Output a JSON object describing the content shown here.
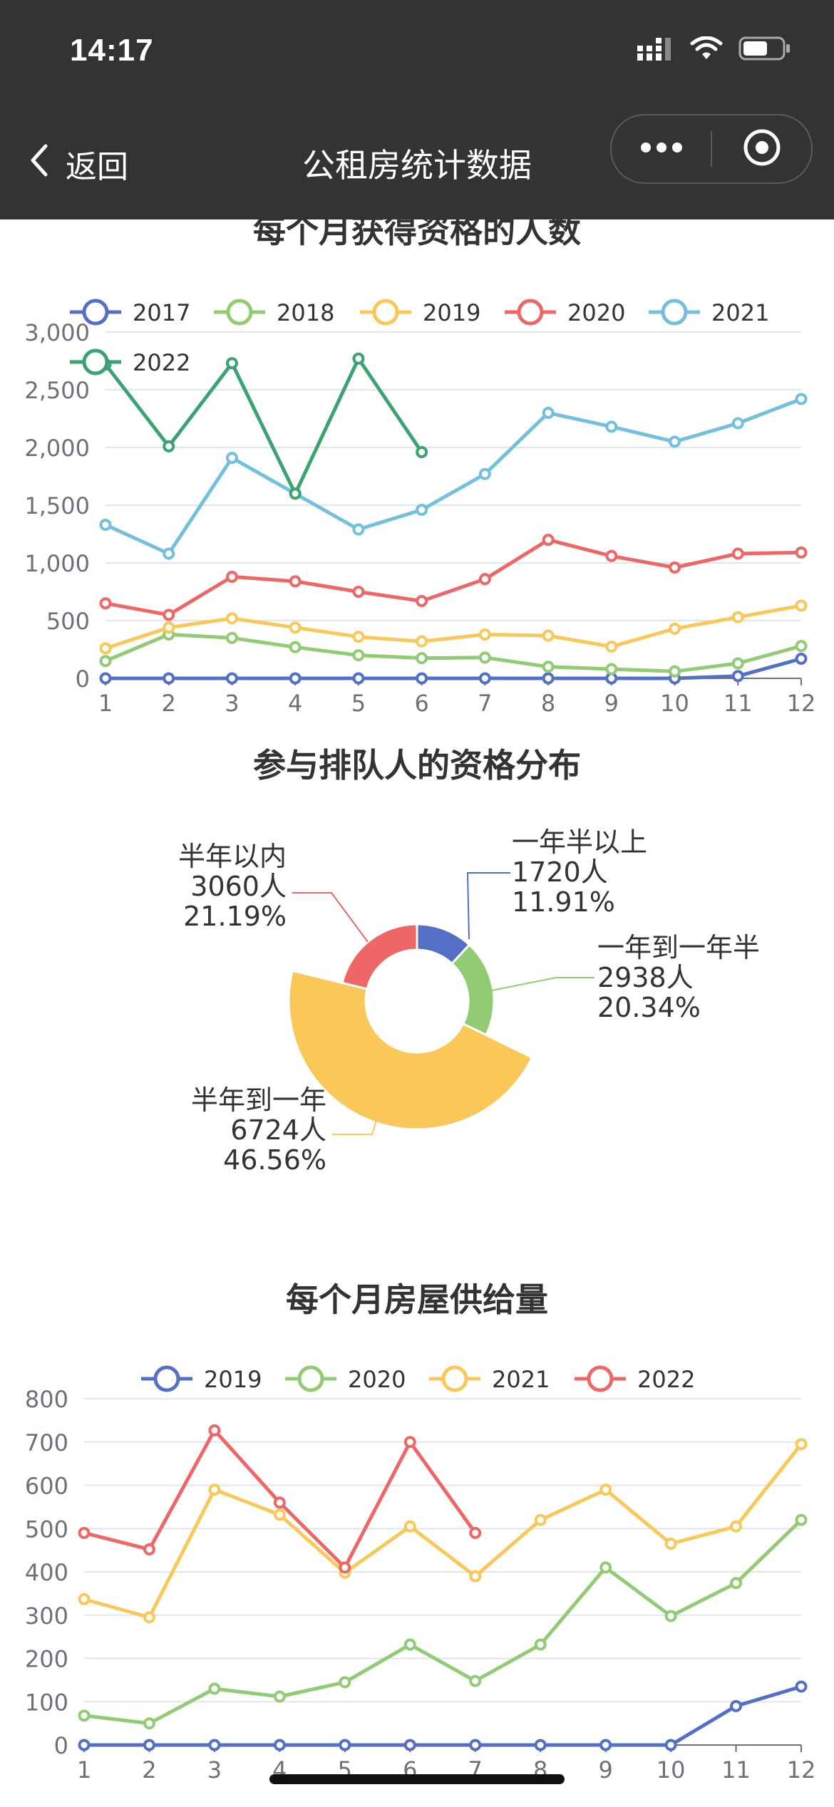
{
  "status_bar": {
    "time": "14:17"
  },
  "nav": {
    "back_label": "返回",
    "title": "公租房统计数据"
  },
  "sections": {
    "chart1_title": "每个月获得资格的人数",
    "chart2_title": "参与排队人的资格分布",
    "chart3_title": "每个月房屋供给量"
  },
  "chart_data": [
    {
      "type": "line",
      "title": "每个月获得资格的人数",
      "x": [
        1,
        2,
        3,
        4,
        5,
        6,
        7,
        8,
        9,
        10,
        11,
        12
      ],
      "ylim": [
        0,
        3000
      ],
      "yticks": [
        "0",
        "500",
        "1,000",
        "1,500",
        "2,000",
        "2,500",
        "3,000"
      ],
      "grid": true,
      "legend_position": "top",
      "series": [
        {
          "name": "2017",
          "color": "#5470c6",
          "values": [
            0,
            0,
            0,
            0,
            0,
            0,
            0,
            0,
            0,
            0,
            20,
            170
          ]
        },
        {
          "name": "2018",
          "color": "#91cc75",
          "values": [
            150,
            380,
            350,
            270,
            200,
            175,
            180,
            100,
            80,
            60,
            130,
            280
          ]
        },
        {
          "name": "2019",
          "color": "#fac858",
          "values": [
            260,
            440,
            520,
            440,
            360,
            320,
            380,
            370,
            275,
            430,
            530,
            630
          ]
        },
        {
          "name": "2020",
          "color": "#ee6666",
          "values": [
            650,
            550,
            880,
            840,
            750,
            670,
            860,
            1200,
            1060,
            960,
            1080,
            1090
          ]
        },
        {
          "name": "2021",
          "color": "#73c0de",
          "values": [
            1330,
            1080,
            1910,
            1600,
            1290,
            1460,
            1770,
            2300,
            2180,
            2050,
            2210,
            2420
          ]
        },
        {
          "name": "2022",
          "color": "#3ba272",
          "values": [
            2720,
            2010,
            2730,
            1600,
            2770,
            1960,
            null,
            null,
            null,
            null,
            null,
            null
          ]
        }
      ]
    },
    {
      "type": "pie",
      "title": "参与排队人的资格分布",
      "slices": [
        {
          "name": "一年半以上",
          "count": "1720人",
          "percent": "11.91%",
          "value": 1720,
          "color": "#5470c6"
        },
        {
          "name": "一年到一年半",
          "count": "2938人",
          "percent": "20.34%",
          "value": 2938,
          "color": "#91cc75"
        },
        {
          "name": "半年到一年",
          "count": "6724人",
          "percent": "46.56%",
          "value": 6724,
          "color": "#fac858"
        },
        {
          "name": "半年以内",
          "count": "3060人",
          "percent": "21.19%",
          "value": 3060,
          "color": "#ee6666"
        }
      ]
    },
    {
      "type": "line",
      "title": "每个月房屋供给量",
      "x": [
        1,
        2,
        3,
        4,
        5,
        6,
        7,
        8,
        9,
        10,
        11,
        12
      ],
      "ylim": [
        0,
        800
      ],
      "yticks": [
        "0",
        "100",
        "200",
        "300",
        "400",
        "500",
        "600",
        "700",
        "800"
      ],
      "grid": true,
      "legend_position": "top",
      "series": [
        {
          "name": "2019",
          "color": "#5470c6",
          "values": [
            0,
            0,
            0,
            0,
            0,
            0,
            0,
            0,
            0,
            0,
            90,
            135
          ]
        },
        {
          "name": "2020",
          "color": "#91cc75",
          "values": [
            68,
            50,
            130,
            112,
            145,
            232,
            148,
            232,
            410,
            298,
            374,
            520
          ]
        },
        {
          "name": "2021",
          "color": "#fac858",
          "values": [
            337,
            295,
            590,
            532,
            398,
            505,
            390,
            520,
            590,
            465,
            505,
            695
          ]
        },
        {
          "name": "2022",
          "color": "#ee6666",
          "values": [
            490,
            452,
            727,
            560,
            410,
            700,
            490,
            null,
            null,
            null,
            null,
            null
          ]
        }
      ]
    }
  ]
}
